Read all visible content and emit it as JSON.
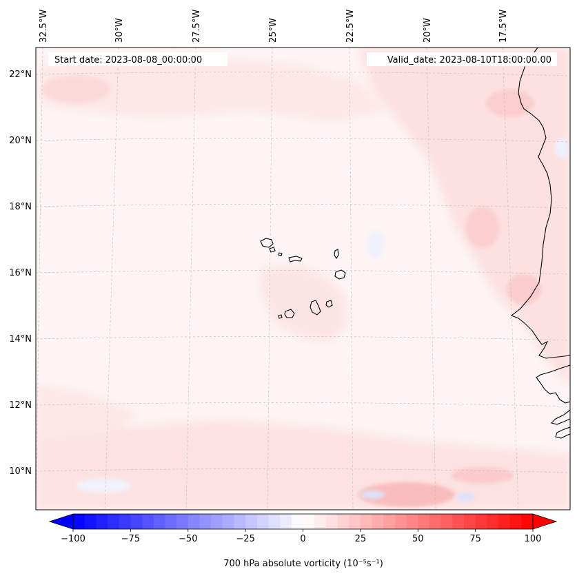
{
  "map": {
    "title_left": "Start date: 2023-08-08_00:00:00",
    "title_right": "Valid_date: 2023-08-10T18:00:00.00",
    "lon_labels": [
      "32.5°W",
      "30°W",
      "27.5°W",
      "25°W",
      "22.5°W",
      "20°W",
      "17.5°W"
    ],
    "lat_labels": [
      "22°N",
      "20°N",
      "18°N",
      "16°N",
      "14°N",
      "12°N",
      "10°N"
    ],
    "colors": {
      "coast": "#000000",
      "grid": "#bbbbbb",
      "background_field": "#fdf4f4",
      "light_pos": "#fde3e3",
      "mid_pos": "#fbc9c9",
      "light_neg": "#eef0fd"
    }
  },
  "colorbar": {
    "label": "700 hPa absolute vorticity (10⁻⁵s⁻¹)",
    "ticks": [
      "−100",
      "−75",
      "−50",
      "−25",
      "0",
      "25",
      "50",
      "75",
      "100"
    ],
    "range": [
      -100,
      100
    ],
    "levels": 41,
    "cmap": "bwr"
  }
}
